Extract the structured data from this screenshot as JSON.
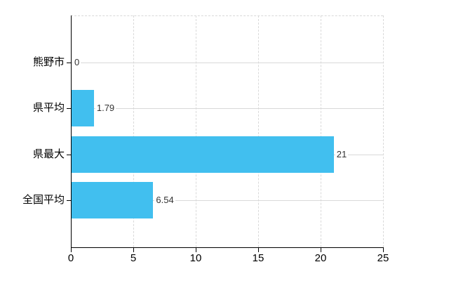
{
  "chart": {
    "background": "#ffffff",
    "bar_color": "#41bfef",
    "grid_color": "#d9d9d9",
    "axis_color": "#000000",
    "value_label_color": "#333333",
    "tick_label_color": "#000000",
    "category_label_color": "#000000"
  },
  "chart_data": {
    "type": "bar",
    "orientation": "horizontal",
    "title": "",
    "categories": [
      "熊野市",
      "県平均",
      "県最大",
      "全国平均"
    ],
    "values": [
      0,
      1.79,
      21,
      6.54
    ],
    "value_labels": [
      "0",
      "1.79",
      "21",
      "6.54"
    ],
    "xlabel": "",
    "ylabel": "",
    "xlim": [
      0,
      25
    ],
    "xticks": [
      0,
      5,
      10,
      15,
      20,
      25
    ],
    "xtick_labels": [
      "0",
      "5",
      "10",
      "15",
      "20",
      "25"
    ],
    "grid": "on",
    "grid_style": {
      "horizontal": "solid",
      "vertical": "dashed"
    },
    "legend": "none"
  }
}
